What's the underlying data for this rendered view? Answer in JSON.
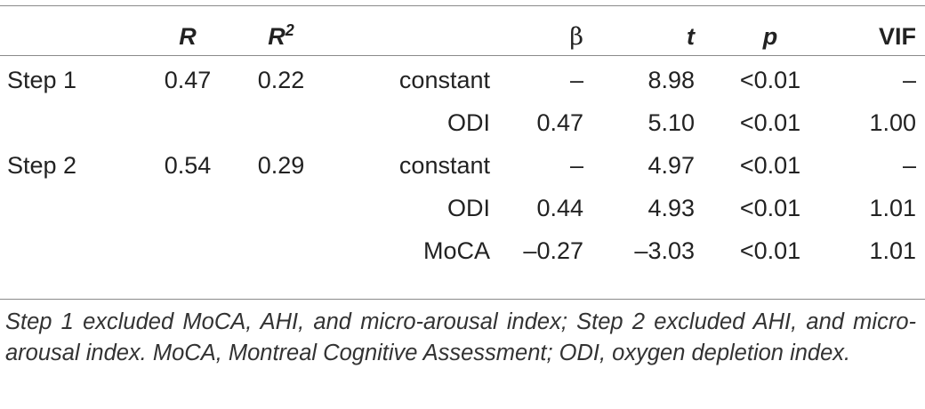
{
  "table": {
    "headers": {
      "col0": "",
      "R": "R",
      "R2_base": "R",
      "R2_sup": "2",
      "col3": "",
      "beta": "β",
      "t": "t",
      "p": "p",
      "vif": "VIF"
    },
    "rows": [
      {
        "step": "Step 1",
        "r": "0.47",
        "r2": "0.22",
        "var": "constant",
        "beta": "–",
        "t": "8.98",
        "p": "<0.01",
        "vif": "–"
      },
      {
        "step": "",
        "r": "",
        "r2": "",
        "var": "ODI",
        "beta": "0.47",
        "t": "5.10",
        "p": "<0.01",
        "vif": "1.00"
      },
      {
        "step": "Step 2",
        "r": "0.54",
        "r2": "0.29",
        "var": "constant",
        "beta": "–",
        "t": "4.97",
        "p": "<0.01",
        "vif": "–"
      },
      {
        "step": "",
        "r": "",
        "r2": "",
        "var": "ODI",
        "beta": "0.44",
        "t": "4.93",
        "p": "<0.01",
        "vif": "1.01"
      },
      {
        "step": "",
        "r": "",
        "r2": "",
        "var": "MoCA",
        "beta": "–0.27",
        "t": "–3.03",
        "p": "<0.01",
        "vif": "1.01"
      }
    ]
  },
  "footnote": "Step 1 excluded MoCA, AHI, and micro-arousal index; Step 2 excluded AHI, and micro-arousal index. MoCA, Montreal Cognitive Assessment; ODI, oxygen depletion index."
}
